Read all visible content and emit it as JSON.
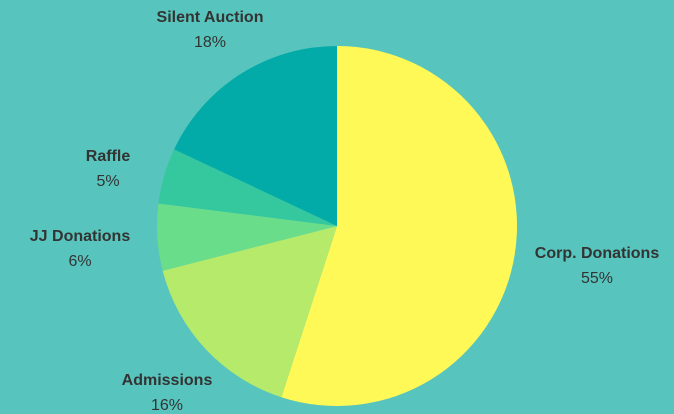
{
  "chart_data": {
    "type": "pie",
    "title": "",
    "background": "#57C5BD",
    "start_angle_deg": 0,
    "direction": "clockwise",
    "slices": [
      {
        "label": "Corp. Donations",
        "value": 55,
        "value_label": "55%",
        "color": "#FEF957"
      },
      {
        "label": "Admissions",
        "value": 16,
        "value_label": "16%",
        "color": "#B5EA6B"
      },
      {
        "label": "JJ Donations",
        "value": 6,
        "value_label": "6%",
        "color": "#6ADD8B"
      },
      {
        "label": "Raffle",
        "value": 5,
        "value_label": "5%",
        "color": "#35C89E"
      },
      {
        "label": "Silent Auction",
        "value": 18,
        "value_label": "18%",
        "color": "#02ABA8"
      }
    ]
  }
}
